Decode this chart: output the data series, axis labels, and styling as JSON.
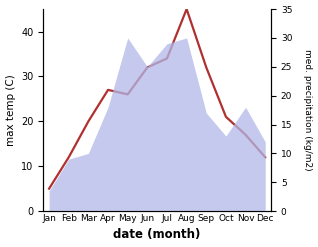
{
  "months": [
    "Jan",
    "Feb",
    "Mar",
    "Apr",
    "May",
    "Jun",
    "Jul",
    "Aug",
    "Sep",
    "Oct",
    "Nov",
    "Dec"
  ],
  "temp": [
    5,
    12,
    20,
    27,
    26,
    32,
    34,
    45,
    32,
    21,
    17,
    12
  ],
  "precip": [
    3.5,
    9,
    10,
    18,
    30,
    25,
    29,
    30,
    17,
    13,
    18,
    12
  ],
  "temp_color": "#b03030",
  "precip_color": "#b0b8e8",
  "title": "",
  "xlabel": "date (month)",
  "ylabel_left": "max temp (C)",
  "ylabel_right": "med. precipitation (kg/m2)",
  "ylim_left": [
    0,
    45
  ],
  "ylim_right": [
    0,
    35
  ],
  "yticks_left": [
    0,
    10,
    20,
    30,
    40
  ],
  "yticks_right": [
    0,
    5,
    10,
    15,
    20,
    25,
    30,
    35
  ],
  "bg_color": "#ffffff"
}
